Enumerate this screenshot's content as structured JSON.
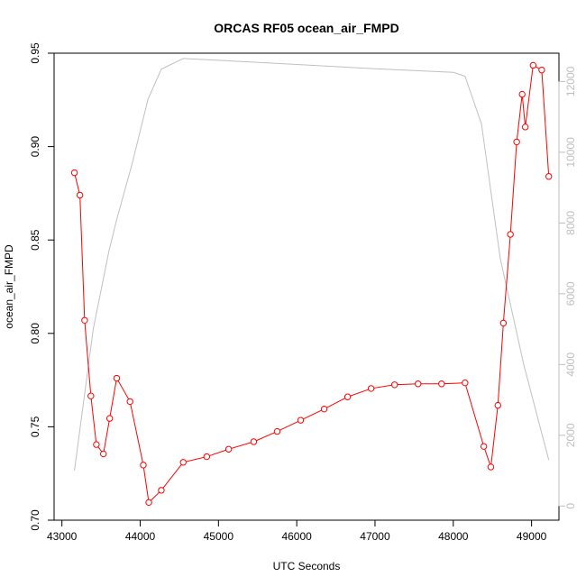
{
  "chart_data": {
    "type": "line",
    "title": "ORCAS RF05 ocean_air_FMPD",
    "xlabel": "UTC Seconds",
    "ylabel": "ocean_air_FMPD",
    "xlim": [
      42900,
      49350
    ],
    "ylim": [
      0.7,
      0.95
    ],
    "y2lim": [
      -400,
      12800
    ],
    "x_ticks": [
      43000,
      44000,
      45000,
      46000,
      47000,
      48000,
      49000
    ],
    "y_ticks": [
      0.7,
      0.75,
      0.8,
      0.85,
      0.9,
      0.95
    ],
    "y2_ticks": [
      0,
      2000,
      4000,
      6000,
      8000,
      10000,
      12000
    ],
    "x_tick_labels": [
      "43000",
      "44000",
      "45000",
      "46000",
      "47000",
      "48000",
      "49000"
    ],
    "y_tick_labels": [
      "0.70",
      "0.75",
      "0.80",
      "0.85",
      "0.90",
      "0.95"
    ],
    "y2_tick_labels": [
      "0",
      "2000",
      "4000",
      "6000",
      "8000",
      "10000",
      "12000"
    ],
    "grid": false,
    "legend": "none",
    "series": [
      {
        "axis": "left",
        "color": "#ff0000",
        "marker": "open-circle",
        "x": [
          43160,
          43230,
          43290,
          43370,
          43440,
          43530,
          43610,
          43700,
          43870,
          44040,
          44110,
          44270,
          44550,
          44850,
          45130,
          45450,
          45750,
          46050,
          46350,
          46650,
          46950,
          47250,
          47550,
          47850,
          48150,
          48390,
          48480,
          48570,
          48640,
          48730,
          48810,
          48880,
          48920,
          49020,
          49130,
          49220
        ],
        "values": [
          0.886,
          0.874,
          0.807,
          0.7665,
          0.7405,
          0.7355,
          0.7545,
          0.776,
          0.7635,
          0.7295,
          0.7095,
          0.716,
          0.731,
          0.734,
          0.738,
          0.742,
          0.7475,
          0.7535,
          0.7595,
          0.766,
          0.7705,
          0.7725,
          0.773,
          0.773,
          0.7735,
          0.7395,
          0.7285,
          0.7615,
          0.8055,
          0.853,
          0.9025,
          0.928,
          0.9105,
          0.9435,
          0.941,
          0.884
        ]
      },
      {
        "axis": "right",
        "color": "#c0c0c0",
        "marker": "none",
        "x": [
          43160,
          43250,
          43400,
          43600,
          43700,
          43900,
          44100,
          44270,
          44550,
          45000,
          46000,
          47000,
          48000,
          48150,
          48360,
          48600,
          48900,
          49220
        ],
        "values": [
          1000,
          2500,
          5000,
          7200,
          8100,
          9700,
          11500,
          12350,
          12650,
          12600,
          12480,
          12360,
          12260,
          12150,
          10800,
          7000,
          4000,
          1300
        ]
      }
    ]
  }
}
